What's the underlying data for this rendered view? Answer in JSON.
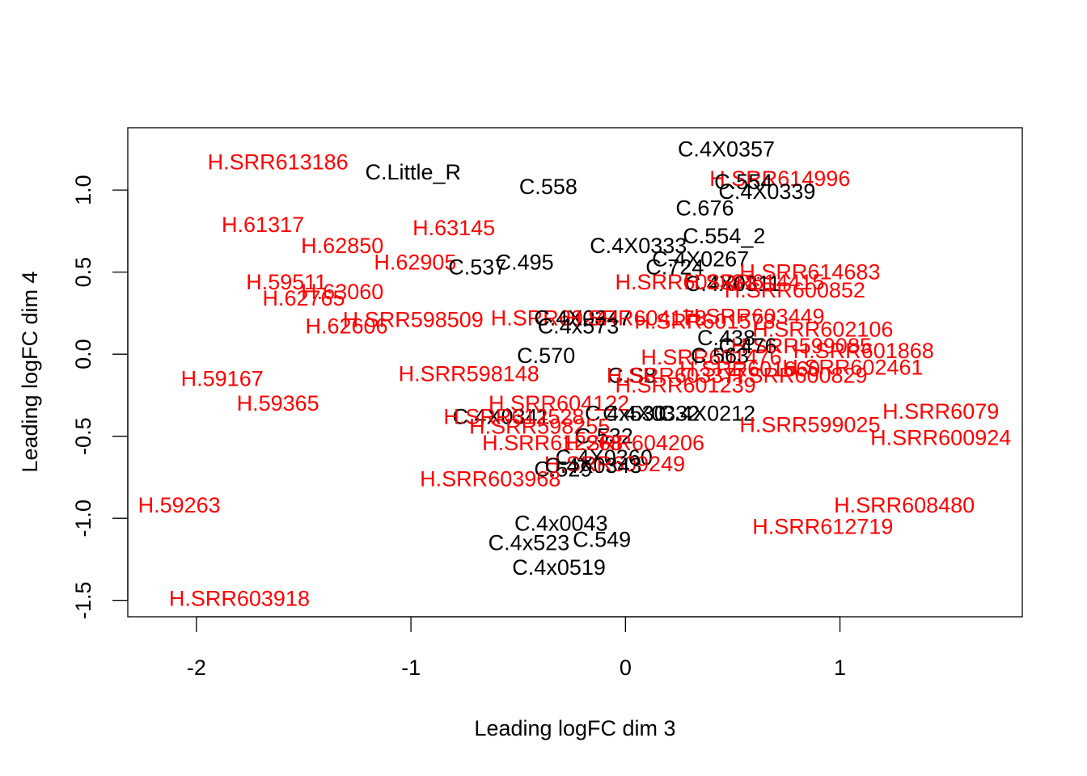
{
  "colors": {
    "group_C": "#000000",
    "group_H": "#ff0000"
  },
  "chart_data": {
    "type": "scatter",
    "title": "",
    "xlabel": "Leading logFC dim 3",
    "ylabel": "Leading logFC dim 4",
    "xlim": [
      -2.32,
      1.85
    ],
    "ylim": [
      -1.6,
      1.38
    ],
    "xticks": [
      -2,
      -1,
      0,
      1
    ],
    "yticks": [
      -1.5,
      -1.0,
      -0.5,
      0.0,
      0.5,
      1.0
    ],
    "ytick_labels": [
      "-1.5",
      "-1.0",
      "-0.5",
      "0.0",
      "0.5",
      "1.0"
    ],
    "marker": "text labels",
    "points": [
      {
        "label": "C.4X0357",
        "x": 0.47,
        "y": 1.25,
        "group": "C"
      },
      {
        "label": "H.SRR613186",
        "x": -1.62,
        "y": 1.17,
        "group": "H"
      },
      {
        "label": "C.Little_R",
        "x": -0.99,
        "y": 1.11,
        "group": "C"
      },
      {
        "label": "H.SRR614996",
        "x": 0.72,
        "y": 1.07,
        "group": "H"
      },
      {
        "label": "C.558",
        "x": -0.36,
        "y": 1.02,
        "group": "C"
      },
      {
        "label": "C.554",
        "x": 0.55,
        "y": 1.05,
        "group": "C"
      },
      {
        "label": "C.4X0339",
        "x": 0.66,
        "y": 0.99,
        "group": "C"
      },
      {
        "label": "C.676",
        "x": 0.37,
        "y": 0.89,
        "group": "C"
      },
      {
        "label": "H.61317",
        "x": -1.69,
        "y": 0.79,
        "group": "H"
      },
      {
        "label": "H.63145",
        "x": -0.8,
        "y": 0.77,
        "group": "H"
      },
      {
        "label": "C.554_2",
        "x": 0.46,
        "y": 0.72,
        "group": "C"
      },
      {
        "label": "H.62850",
        "x": -1.32,
        "y": 0.66,
        "group": "H"
      },
      {
        "label": "C.4X0333",
        "x": 0.06,
        "y": 0.66,
        "group": "C"
      },
      {
        "label": "C.4X0267",
        "x": 0.35,
        "y": 0.58,
        "group": "C"
      },
      {
        "label": "H.62905",
        "x": -0.98,
        "y": 0.56,
        "group": "H"
      },
      {
        "label": "C.495",
        "x": -0.47,
        "y": 0.56,
        "group": "C"
      },
      {
        "label": "C.537",
        "x": -0.69,
        "y": 0.53,
        "group": "C"
      },
      {
        "label": "C.724",
        "x": 0.23,
        "y": 0.53,
        "group": "C"
      },
      {
        "label": "H.SRR614683",
        "x": 0.86,
        "y": 0.5,
        "group": "H"
      },
      {
        "label": "H.59511",
        "x": -1.58,
        "y": 0.44,
        "group": "H"
      },
      {
        "label": "H.SRR602381",
        "x": 0.28,
        "y": 0.44,
        "group": "H"
      },
      {
        "label": "C.4X0311",
        "x": 0.5,
        "y": 0.43,
        "group": "C"
      },
      {
        "label": "H.SRR614415",
        "x": 0.6,
        "y": 0.44,
        "group": "H"
      },
      {
        "label": "H.63060",
        "x": -1.32,
        "y": 0.38,
        "group": "H"
      },
      {
        "label": "H.SRR600852",
        "x": 0.79,
        "y": 0.39,
        "group": "H"
      },
      {
        "label": "H.62765",
        "x": -1.5,
        "y": 0.34,
        "group": "H"
      },
      {
        "label": "H.SRR598509",
        "x": -0.99,
        "y": 0.21,
        "group": "H"
      },
      {
        "label": "H.SRR602447",
        "x": -0.3,
        "y": 0.22,
        "group": "H"
      },
      {
        "label": "C.4X0347",
        "x": -0.2,
        "y": 0.22,
        "group": "C"
      },
      {
        "label": "H.SRR604178",
        "x": 0.05,
        "y": 0.22,
        "group": "H"
      },
      {
        "label": "H.SRR603449",
        "x": 0.6,
        "y": 0.23,
        "group": "H"
      },
      {
        "label": "H.SRR601573",
        "x": 0.37,
        "y": 0.2,
        "group": "H"
      },
      {
        "label": "C.4x573",
        "x": -0.22,
        "y": 0.17,
        "group": "C"
      },
      {
        "label": "H.62606",
        "x": -1.3,
        "y": 0.17,
        "group": "H"
      },
      {
        "label": "H.SRR602106",
        "x": 0.92,
        "y": 0.15,
        "group": "H"
      },
      {
        "label": "C.438",
        "x": 0.47,
        "y": 0.1,
        "group": "C"
      },
      {
        "label": "H.SRR599085",
        "x": 0.82,
        "y": 0.05,
        "group": "H"
      },
      {
        "label": "C.476",
        "x": 0.57,
        "y": 0.05,
        "group": "C"
      },
      {
        "label": "H.SRR601868",
        "x": 1.11,
        "y": 0.02,
        "group": "H"
      },
      {
        "label": "C.570",
        "x": -0.37,
        "y": -0.01,
        "group": "C"
      },
      {
        "label": "H.SRR601476",
        "x": 0.4,
        "y": -0.02,
        "group": "H"
      },
      {
        "label": "C.563",
        "x": 0.44,
        "y": -0.01,
        "group": "C"
      },
      {
        "label": "H.SRR602461",
        "x": 1.06,
        "y": -0.08,
        "group": "H"
      },
      {
        "label": "H.SRR598148",
        "x": -0.73,
        "y": -0.12,
        "group": "H"
      },
      {
        "label": "C.S8",
        "x": 0.03,
        "y": -0.13,
        "group": "C"
      },
      {
        "label": "H.SRR600829",
        "x": 0.8,
        "y": -0.13,
        "group": "H"
      },
      {
        "label": "H.SRR601660",
        "x": 0.58,
        "y": -0.09,
        "group": "H"
      },
      {
        "label": "H.SRR603377",
        "x": 0.24,
        "y": -0.13,
        "group": "H"
      },
      {
        "label": "H.SRR601239",
        "x": 0.28,
        "y": -0.19,
        "group": "H"
      },
      {
        "label": "H.59167",
        "x": -1.88,
        "y": -0.15,
        "group": "H"
      },
      {
        "label": "H.59365",
        "x": -1.62,
        "y": -0.3,
        "group": "H"
      },
      {
        "label": "H.SRR604122",
        "x": -0.31,
        "y": -0.3,
        "group": "H"
      },
      {
        "label": "C.4X0341",
        "x": -0.58,
        "y": -0.38,
        "group": "C"
      },
      {
        "label": "H.SRR612528",
        "x": -0.52,
        "y": -0.38,
        "group": "H"
      },
      {
        "label": "C.4x530",
        "x": 0.0,
        "y": -0.36,
        "group": "C"
      },
      {
        "label": "C.4X0332",
        "x": 0.12,
        "y": -0.36,
        "group": "C"
      },
      {
        "label": "C.4X0212",
        "x": 0.38,
        "y": -0.36,
        "group": "C"
      },
      {
        "label": "H.SRR599025",
        "x": 0.86,
        "y": -0.43,
        "group": "H"
      },
      {
        "label": "H.SRR6079",
        "x": 1.47,
        "y": -0.35,
        "group": "H"
      },
      {
        "label": "H.SRR598255",
        "x": -0.4,
        "y": -0.44,
        "group": "H"
      },
      {
        "label": "C.532",
        "x": -0.1,
        "y": -0.5,
        "group": "C"
      },
      {
        "label": "H.SRR600924",
        "x": 1.47,
        "y": -0.51,
        "group": "H"
      },
      {
        "label": "H.SRR604206",
        "x": 0.04,
        "y": -0.54,
        "group": "H"
      },
      {
        "label": "H.SRR612268",
        "x": -0.34,
        "y": -0.54,
        "group": "H"
      },
      {
        "label": "C.4X0360",
        "x": -0.1,
        "y": -0.63,
        "group": "C"
      },
      {
        "label": "H.SRR609249",
        "x": -0.05,
        "y": -0.67,
        "group": "H"
      },
      {
        "label": "C.4X0343",
        "x": -0.15,
        "y": -0.68,
        "group": "C"
      },
      {
        "label": "C.529",
        "x": -0.29,
        "y": -0.7,
        "group": "C"
      },
      {
        "label": "H.SRR603968",
        "x": -0.63,
        "y": -0.76,
        "group": "H"
      },
      {
        "label": "H.59263",
        "x": -2.08,
        "y": -0.92,
        "group": "H"
      },
      {
        "label": "H.SRR608480",
        "x": 1.3,
        "y": -0.92,
        "group": "H"
      },
      {
        "label": "C.4x0043",
        "x": -0.3,
        "y": -1.03,
        "group": "C"
      },
      {
        "label": "H.SRR612719",
        "x": 0.92,
        "y": -1.05,
        "group": "H"
      },
      {
        "label": "C.549",
        "x": -0.11,
        "y": -1.13,
        "group": "C"
      },
      {
        "label": "C.4x523",
        "x": -0.45,
        "y": -1.15,
        "group": "C"
      },
      {
        "label": "C.4x0519",
        "x": -0.31,
        "y": -1.3,
        "group": "C"
      },
      {
        "label": "H.SRR603918",
        "x": -1.8,
        "y": -1.49,
        "group": "H"
      }
    ]
  }
}
